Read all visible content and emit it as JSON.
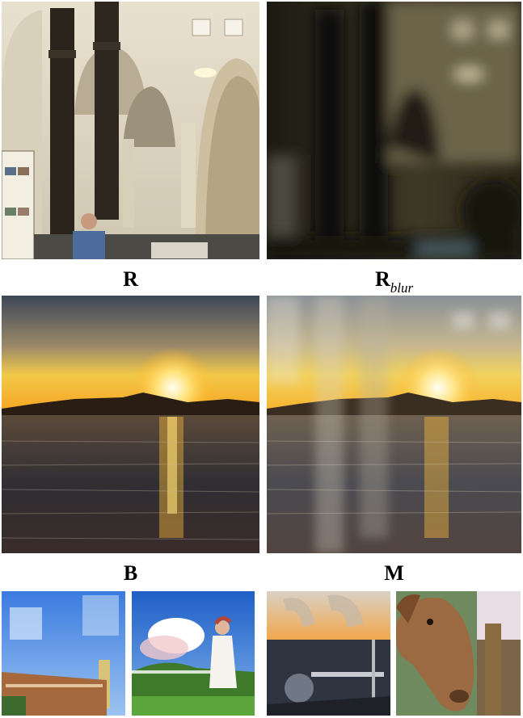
{
  "captions": {
    "r": "R",
    "r_blur_base": "R",
    "r_blur_sub": "blur",
    "b": "B",
    "m": "M"
  }
}
